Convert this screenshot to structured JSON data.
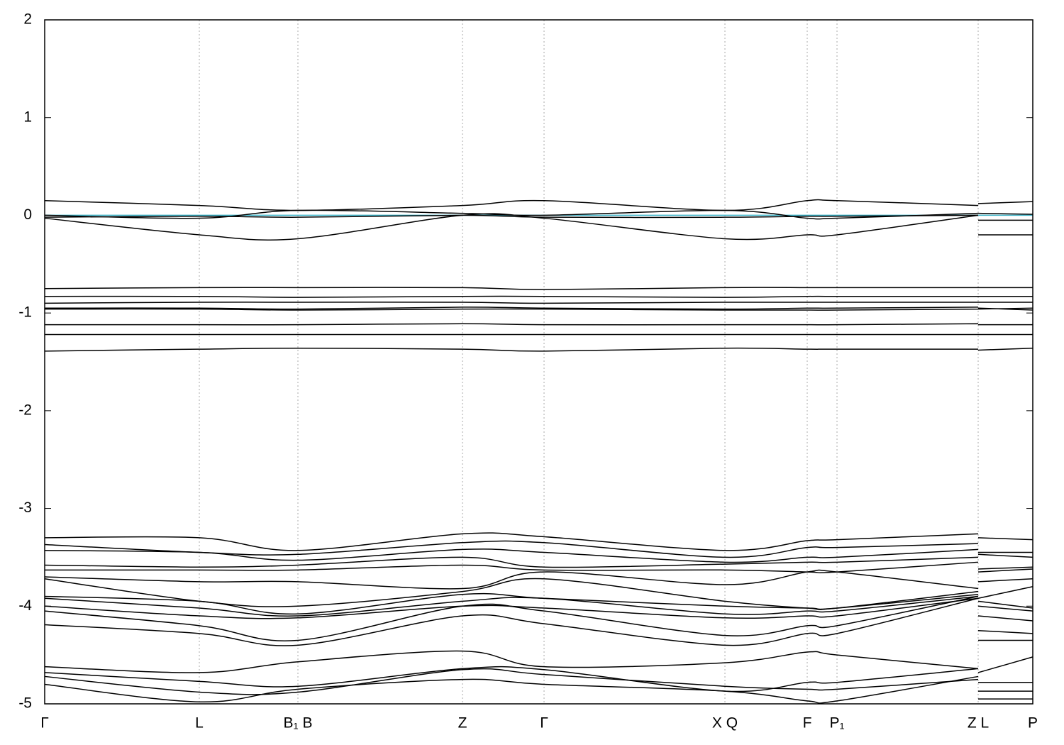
{
  "chart_data": {
    "type": "line",
    "x": [
      0,
      218,
      357,
      589,
      704,
      959,
      1075,
      1117,
      1316,
      1316,
      1316,
      1393
    ],
    "xlim": [
      0,
      1393
    ],
    "xticks": [
      {
        "value": 0,
        "label": "Γ"
      },
      {
        "value": 218,
        "label": "L"
      },
      {
        "value": 357,
        "label": "B₁ B"
      },
      {
        "value": 589,
        "label": "Z"
      },
      {
        "value": 704,
        "label": "Γ"
      },
      {
        "value": 959,
        "label": "X Q"
      },
      {
        "value": 1075,
        "label": "F"
      },
      {
        "value": 1117,
        "label": "P₁"
      },
      {
        "value": 1316,
        "label": "Z L"
      },
      {
        "value": 1393,
        "label": "P"
      }
    ],
    "ylim": [
      -5,
      2
    ],
    "yticks": [
      -5,
      -4,
      -3,
      -2,
      -1,
      0,
      1,
      2
    ],
    "grid": true,
    "reference_line": {
      "value": 0,
      "color": "#3cb4c8"
    },
    "series": [
      {
        "color": "#000000",
        "values": [
          0.15,
          0.1,
          0.05,
          0.1,
          0.15,
          0.05,
          0.15,
          0.15,
          0.1,
          null,
          0.12,
          0.14
        ]
      },
      {
        "color": "#000000",
        "values": [
          -0.03,
          -0.2,
          -0.24,
          0.0,
          -0.03,
          -0.24,
          -0.2,
          -0.2,
          0.0,
          null,
          -0.2,
          -0.2
        ]
      },
      {
        "color": "#000000",
        "values": [
          0.0,
          -0.03,
          0.05,
          0.02,
          0.0,
          0.05,
          -0.03,
          -0.03,
          0.02,
          null,
          -0.05,
          -0.05
        ]
      },
      {
        "color": "#000000",
        "values": [
          -0.02,
          -0.01,
          -0.02,
          0.0,
          -0.02,
          -0.02,
          -0.01,
          -0.01,
          0.0,
          null,
          0.02,
          0.01
        ]
      },
      {
        "color": "#000000",
        "values": [
          -0.75,
          -0.74,
          -0.74,
          -0.74,
          -0.76,
          -0.74,
          -0.74,
          -0.74,
          -0.74,
          null,
          -0.74,
          -0.74
        ]
      },
      {
        "color": "#000000",
        "values": [
          -0.83,
          -0.83,
          -0.84,
          -0.83,
          -0.83,
          -0.84,
          -0.83,
          -0.83,
          -0.83,
          null,
          -0.83,
          -0.83
        ]
      },
      {
        "color": "#000000",
        "values": [
          -0.9,
          -0.89,
          -0.89,
          -0.89,
          -0.9,
          -0.89,
          -0.89,
          -0.89,
          -0.89,
          null,
          -0.89,
          -0.89
        ]
      },
      {
        "color": "#000000",
        "values": [
          -0.95,
          -0.95,
          -0.96,
          -0.94,
          -0.95,
          -0.96,
          -0.95,
          -0.95,
          -0.94,
          null,
          -0.95,
          -0.97
        ]
      },
      {
        "color": "#000000",
        "values": [
          -0.96,
          -0.96,
          -0.97,
          -0.96,
          -0.96,
          -0.97,
          -0.97,
          -0.97,
          -0.96,
          null,
          -0.96,
          -0.95
        ]
      },
      {
        "color": "#000000",
        "values": [
          -1.12,
          -1.12,
          -1.12,
          -1.11,
          -1.12,
          -1.12,
          -1.12,
          -1.12,
          -1.11,
          null,
          -1.12,
          -1.12
        ]
      },
      {
        "color": "#000000",
        "values": [
          -1.22,
          -1.22,
          -1.22,
          -1.22,
          -1.22,
          -1.22,
          -1.22,
          -1.22,
          -1.22,
          null,
          -1.22,
          -1.22
        ]
      },
      {
        "color": "#000000",
        "values": [
          -1.39,
          -1.37,
          -1.36,
          -1.37,
          -1.39,
          -1.36,
          -1.37,
          -1.37,
          -1.37,
          null,
          -1.38,
          -1.36
        ]
      },
      {
        "color": "#000000",
        "values": [
          -3.3,
          -3.3,
          -3.43,
          -3.26,
          -3.29,
          -3.43,
          -3.33,
          -3.32,
          -3.26,
          null,
          -3.3,
          -3.32
        ]
      },
      {
        "color": "#000000",
        "values": [
          -3.37,
          -3.45,
          -3.47,
          -3.35,
          -3.35,
          -3.5,
          -3.4,
          -3.4,
          -3.36,
          null,
          -3.45,
          -3.45
        ]
      },
      {
        "color": "#000000",
        "values": [
          -3.43,
          -3.45,
          -3.53,
          -3.42,
          -3.45,
          -3.55,
          -3.5,
          -3.5,
          -3.42,
          null,
          -3.47,
          -3.5
        ]
      },
      {
        "color": "#000000",
        "values": [
          -3.58,
          -3.6,
          -3.58,
          -3.5,
          -3.6,
          -3.57,
          -3.55,
          -3.55,
          -3.5,
          null,
          -3.62,
          -3.6
        ]
      },
      {
        "color": "#000000",
        "values": [
          -3.63,
          -3.63,
          -3.63,
          -3.58,
          -3.63,
          -3.63,
          -3.65,
          -3.65,
          -3.55,
          null,
          -3.65,
          -3.62
        ]
      },
      {
        "color": "#000000",
        "values": [
          -3.7,
          -3.75,
          -3.75,
          -3.82,
          -3.65,
          -3.78,
          -3.65,
          -3.65,
          -3.82,
          null,
          -3.75,
          -3.72
        ]
      },
      {
        "color": "#000000",
        "values": [
          -3.72,
          -3.95,
          -4.0,
          -3.85,
          -3.72,
          -3.95,
          -4.02,
          -4.02,
          -3.85,
          null,
          -3.92,
          -3.8
        ]
      },
      {
        "color": "#000000",
        "values": [
          -3.9,
          -3.95,
          -4.08,
          -3.88,
          -3.92,
          -4.0,
          -4.02,
          -4.02,
          -3.88,
          null,
          -3.95,
          -4.02
        ]
      },
      {
        "color": "#000000",
        "values": [
          -3.92,
          -4.02,
          -4.1,
          -3.95,
          -3.92,
          -4.08,
          -4.05,
          -4.05,
          -3.9,
          null,
          -4.0,
          -4.05
        ]
      },
      {
        "color": "#000000",
        "values": [
          -4.0,
          -4.1,
          -4.12,
          -4.0,
          -4.02,
          -4.12,
          -4.1,
          -4.1,
          -3.92,
          null,
          -4.1,
          -4.15
        ]
      },
      {
        "color": "#000000",
        "values": [
          -4.05,
          -4.2,
          -4.35,
          -4.0,
          -4.05,
          -4.3,
          -4.2,
          -4.2,
          -3.9,
          null,
          -4.35,
          -4.35
        ]
      },
      {
        "color": "#000000",
        "values": [
          -4.19,
          -4.28,
          -4.4,
          -4.1,
          -4.18,
          -4.4,
          -4.28,
          -4.28,
          -3.92,
          null,
          -4.25,
          -4.28
        ]
      },
      {
        "color": "#000000",
        "values": [
          -4.62,
          -4.68,
          -4.57,
          -4.46,
          -4.62,
          -4.58,
          -4.47,
          -4.5,
          -4.64,
          null,
          -4.68,
          -4.52
        ]
      },
      {
        "color": "#000000",
        "values": [
          -4.68,
          -4.77,
          -4.82,
          -4.64,
          -4.65,
          -4.87,
          -4.78,
          -4.78,
          -4.64,
          null,
          -4.78,
          -4.78
        ]
      },
      {
        "color": "#000000",
        "values": [
          -4.72,
          -4.88,
          -4.88,
          -4.65,
          -4.7,
          -4.82,
          -4.85,
          -4.85,
          -4.75,
          null,
          -4.87,
          -4.87
        ]
      },
      {
        "color": "#000000",
        "values": [
          -4.8,
          -4.98,
          -4.85,
          -4.75,
          -4.8,
          -4.87,
          -4.97,
          -4.97,
          -4.72,
          null,
          -4.95,
          -4.95
        ]
      }
    ]
  }
}
